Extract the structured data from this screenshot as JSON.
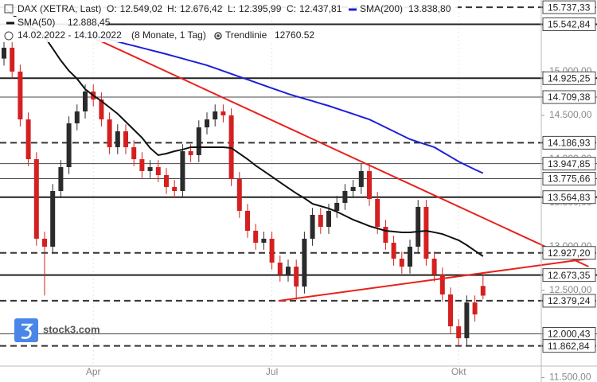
{
  "chart_data": {
    "type": "candlestick",
    "header": {
      "instrument": "DAX (XETRA, Last)",
      "quote": [
        {
          "name": "O:",
          "value": 12549.02,
          "label": "12.549,02"
        },
        {
          "name": "H:",
          "value": 12676.42,
          "label": "12.676,42"
        },
        {
          "name": "L:",
          "value": 12395.99,
          "label": "12.395,99"
        },
        {
          "name": "C:",
          "value": 12437.81,
          "label": "12.437,81"
        }
      ],
      "range": "14.02.2022 - 14.10.2022",
      "span": "(8 Monate, 1 Tag)"
    },
    "categories": [
      null,
      null,
      null,
      null,
      null,
      null,
      null,
      null,
      null,
      null,
      null,
      "Apr",
      null,
      null,
      null,
      null,
      null,
      null,
      null,
      null,
      null,
      null,
      null,
      null,
      null,
      null,
      null,
      null,
      null,
      null,
      null,
      null,
      null,
      "Jul",
      null,
      null,
      null,
      null,
      null,
      null,
      null,
      null,
      null,
      null,
      null,
      null,
      null,
      null,
      null,
      null,
      null,
      null,
      null,
      null,
      null,
      null,
      "Okt",
      null,
      null,
      null
    ],
    "ohlc": {
      "up_color": "#2b2b2b",
      "down_color": "#d42020",
      "open": [
        15150,
        15274,
        15001,
        14454,
        13999,
        13089,
        12998,
        13635,
        13908,
        14409,
        14545,
        14773,
        14682,
        14454,
        14136,
        14318,
        14136,
        13999,
        13863,
        13908,
        13817,
        13681,
        13635,
        14090,
        14045,
        14363,
        14454,
        14545,
        14500,
        13772,
        13408,
        13180,
        13043,
        13089,
        12816,
        12679,
        12770,
        12542,
        13089,
        13362,
        13225,
        13408,
        13499,
        13635,
        13681,
        13863,
        13544,
        13225,
        13043,
        12861,
        12770,
        12998,
        13453,
        12861,
        12679,
        12451,
        12087,
        11951,
        12360,
        12549.02
      ],
      "high": [
        15354,
        15354,
        15081,
        14534,
        14079,
        13169,
        13715,
        13988,
        14489,
        14625,
        14853,
        14853,
        14762,
        14534,
        14398,
        14398,
        14216,
        14079,
        13988,
        13988,
        13897,
        13761,
        14170,
        14170,
        14443,
        14534,
        14625,
        14625,
        14580,
        13852,
        13488,
        13260,
        13169,
        13169,
        12896,
        12850,
        12850,
        13169,
        13442,
        13442,
        13488,
        13579,
        13715,
        13761,
        13948,
        13943,
        13624,
        13305,
        13123,
        12941,
        13078,
        13533,
        13533,
        12941,
        12759,
        12531,
        12167,
        12440,
        12440,
        12676.42
      ],
      "low": [
        15070,
        14921,
        14374,
        13919,
        13009,
        12440,
        12918,
        13555,
        13828,
        14329,
        14465,
        14602,
        14374,
        14056,
        14056,
        14056,
        13919,
        13783,
        13783,
        13737,
        13601,
        13555,
        13555,
        13965,
        13965,
        14283,
        14374,
        14420,
        13692,
        13328,
        13100,
        12963,
        12963,
        12736,
        12599,
        12599,
        12390,
        12462,
        13009,
        13145,
        13145,
        13328,
        13419,
        13555,
        13601,
        13464,
        13145,
        12963,
        12781,
        12690,
        12690,
        12918,
        12781,
        12599,
        12371,
        12007,
        11863,
        11871,
        12143,
        12395.99
      ],
      "close": [
        15274,
        15001,
        14454,
        13999,
        13089,
        12998,
        13635,
        13908,
        14409,
        14545,
        14773,
        14682,
        14454,
        14136,
        14318,
        14136,
        13999,
        13863,
        13908,
        13817,
        13681,
        13635,
        14090,
        14045,
        14363,
        14454,
        14545,
        14500,
        13772,
        13408,
        13180,
        13043,
        13089,
        12816,
        12679,
        12770,
        12542,
        13089,
        13362,
        13225,
        13408,
        13499,
        13635,
        13681,
        13863,
        13544,
        13225,
        13043,
        12861,
        12770,
        12998,
        13453,
        12861,
        12679,
        12451,
        12087,
        11951,
        12360,
        12223,
        12437.81
      ]
    },
    "series": [
      {
        "name": "SMA(200)",
        "color": "#1f1fd8",
        "last_label": "13.838,80",
        "values": [
          null,
          null,
          null,
          null,
          null,
          null,
          null,
          null,
          null,
          15456,
          15438,
          15415,
          15392,
          15368,
          15344,
          15319,
          15296,
          15272,
          15248,
          15225,
          15201,
          15175,
          15150,
          15124,
          15099,
          15073,
          15041,
          15008,
          14975,
          14942,
          14910,
          14877,
          14844,
          14811,
          14779,
          14746,
          14718,
          14691,
          14664,
          14636,
          14609,
          14578,
          14547,
          14516,
          14485,
          14454,
          14409,
          14363,
          14318,
          14272,
          14227,
          14197,
          14166,
          14136,
          14081,
          14027,
          13972,
          13926,
          13881,
          13838.8
        ]
      },
      {
        "name": "SMA(50)",
        "color": "#111111",
        "last_label": "12.888,45",
        "values": [
          15729,
          15656,
          15592,
          15520,
          15474,
          15401,
          15265,
          15128,
          15010,
          14919,
          14800,
          14728,
          14664,
          14591,
          14518,
          14427,
          14336,
          14245,
          14127,
          14045,
          14063,
          14090,
          14109,
          14136,
          14136,
          14136,
          14136,
          14136,
          14127,
          14063,
          13999,
          13926,
          13863,
          13799,
          13735,
          13671,
          13608,
          13553,
          13489,
          13462,
          13435,
          13398,
          13353,
          13307,
          13271,
          13234,
          13207,
          13180,
          13171,
          13162,
          13162,
          13171,
          13180,
          13162,
          13143,
          13107,
          13071,
          13016,
          12952,
          12888.45
        ]
      }
    ],
    "trendline_name": "Trendlinie",
    "trendline_value": 12760.52,
    "trendlines": [
      {
        "color": "#e8211d",
        "x": [
          10.3,
          72
        ],
        "values": [
          15419,
          12770
        ]
      },
      {
        "color": "#e8211d",
        "x": [
          33.8,
          72
        ],
        "values": [
          12379,
          12861
        ]
      }
    ],
    "levels": [
      {
        "value": 15737.33,
        "label": "15.737,33",
        "style": "dashed"
      },
      {
        "value": 15542.84,
        "label": "15.542,84",
        "style": "thick"
      },
      {
        "value": 14925.25,
        "label": "14.925,25",
        "style": "thick"
      },
      {
        "value": 14709.38,
        "label": "14.709,38",
        "style": "thin"
      },
      {
        "value": 14186.93,
        "label": "14.186,93",
        "style": "dashed"
      },
      {
        "value": 13947.85,
        "label": "13.947,85",
        "style": "thin"
      },
      {
        "value": 13775.66,
        "label": "13.775,66",
        "style": "thin"
      },
      {
        "value": 13564.83,
        "label": "13.564,83",
        "style": "thick"
      },
      {
        "value": 12927.2,
        "label": "12.927,20",
        "style": "dashed"
      },
      {
        "value": 12673.35,
        "label": "12.673,35",
        "style": "thick"
      },
      {
        "value": 12379.24,
        "label": "12.379,24",
        "style": "dashed"
      },
      {
        "value": 12000.43,
        "label": "12.000,43",
        "style": "thin"
      },
      {
        "value": 11862.84,
        "label": "11.862,84",
        "style": "dashed"
      }
    ],
    "ylim": [
      11450,
      15820
    ],
    "yticks": [
      {
        "value": 11500,
        "label": "11.500,00"
      },
      {
        "value": 12000,
        "label": "12.000,00"
      },
      {
        "value": 12500,
        "label": "12.500,00"
      },
      {
        "value": 13000,
        "label": "13.000,00"
      },
      {
        "value": 13500,
        "label": "13.500,00"
      },
      {
        "value": 14000,
        "label": "14.000,00"
      },
      {
        "value": 14500,
        "label": "14.500,00"
      },
      {
        "value": 15000,
        "label": "15.000,00"
      }
    ],
    "brand": "stock3.com"
  }
}
